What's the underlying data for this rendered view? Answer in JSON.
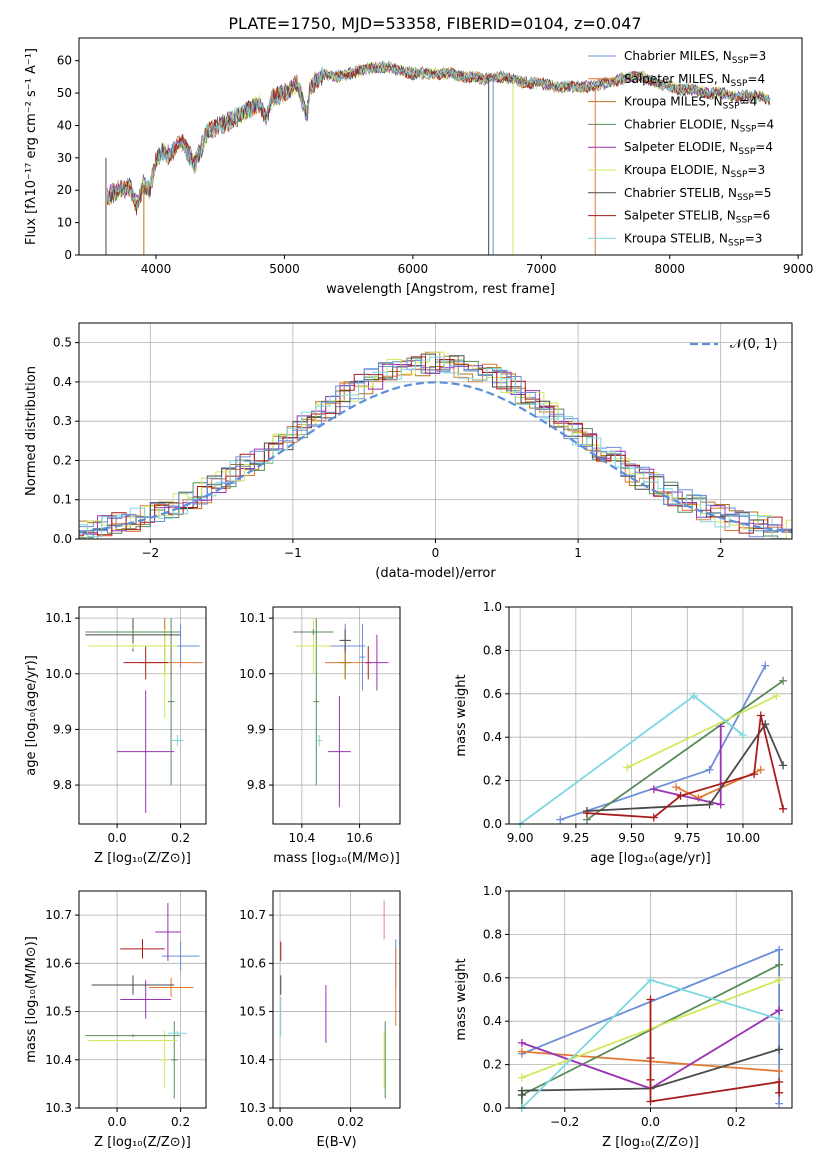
{
  "title": "PLATE=1750, MJD=53358, FIBERID=0104, z=0.047",
  "models": [
    {
      "label": "Chabrier MILES, N",
      "n": "=3",
      "color": "#6c8fd8"
    },
    {
      "label": "Salpeter MILES, N",
      "n": "=4",
      "color": "#e27a35"
    },
    {
      "label": "Kroupa MILES, N",
      "n": "=4",
      "color": "#b5761a"
    },
    {
      "label": "Chabrier ELODIE, N",
      "n": "=4",
      "color": "#5a8a5a"
    },
    {
      "label": "Salpeter ELODIE, N",
      "n": "=4",
      "color": "#9a32b4"
    },
    {
      "label": "Kroupa ELODIE, N",
      "n": "=3",
      "color": "#d2e85c"
    },
    {
      "label": "Chabrier STELIB, N",
      "n": "=5",
      "color": "#4a4a4a"
    },
    {
      "label": "Salpeter STELIB, N",
      "n": "=6",
      "color": "#a81c1c"
    },
    {
      "label": "Kroupa STELIB, N",
      "n": "=3",
      "color": "#7dd8e0"
    }
  ],
  "nssp_sub": "SSP",
  "chart_data": [
    {
      "id": "spectrum",
      "type": "line",
      "xlabel": "wavelength [Angstrom, rest frame]",
      "ylabel": "Flux [fλ10⁻¹⁷ erg cm⁻² s⁻¹ A⁻¹]",
      "xlim": [
        3400,
        9030
      ],
      "ylim": [
        0,
        67
      ],
      "xticks": [
        4000,
        5000,
        6000,
        7000,
        8000,
        9000
      ],
      "yticks": [
        0,
        10,
        20,
        30,
        40,
        50,
        60
      ],
      "continuum": [
        [
          3620,
          18
        ],
        [
          3700,
          20
        ],
        [
          3800,
          21
        ],
        [
          3850,
          15
        ],
        [
          3900,
          22
        ],
        [
          3950,
          20
        ],
        [
          4000,
          29
        ],
        [
          4050,
          32
        ],
        [
          4100,
          31
        ],
        [
          4200,
          35
        ],
        [
          4300,
          28
        ],
        [
          4400,
          38
        ],
        [
          4500,
          40
        ],
        [
          4600,
          42
        ],
        [
          4700,
          44
        ],
        [
          4800,
          47
        ],
        [
          4860,
          42
        ],
        [
          4900,
          48
        ],
        [
          5000,
          50
        ],
        [
          5100,
          53
        ],
        [
          5175,
          43
        ],
        [
          5200,
          52
        ],
        [
          5300,
          56
        ],
        [
          5400,
          55
        ],
        [
          5500,
          56
        ],
        [
          5600,
          57
        ],
        [
          5700,
          58
        ],
        [
          5800,
          58
        ],
        [
          5900,
          57
        ],
        [
          6000,
          56
        ],
        [
          6100,
          56
        ],
        [
          6200,
          56
        ],
        [
          6300,
          56
        ],
        [
          6400,
          55
        ],
        [
          6500,
          55
        ],
        [
          6563,
          54
        ],
        [
          6600,
          55
        ],
        [
          6700,
          55
        ],
        [
          6800,
          54
        ],
        [
          6900,
          53
        ],
        [
          7000,
          53
        ],
        [
          7100,
          52
        ],
        [
          7200,
          52
        ],
        [
          7300,
          52
        ],
        [
          7400,
          52
        ],
        [
          7500,
          53
        ],
        [
          7600,
          54
        ],
        [
          7700,
          55
        ],
        [
          7800,
          55
        ],
        [
          7900,
          53
        ],
        [
          8000,
          52
        ],
        [
          8100,
          51
        ],
        [
          8200,
          51
        ],
        [
          8300,
          50
        ],
        [
          8400,
          50
        ],
        [
          8500,
          49
        ],
        [
          8600,
          49
        ],
        [
          8700,
          49
        ],
        [
          8780,
          48
        ]
      ],
      "drops": [
        {
          "x": 3610,
          "model": 6
        },
        {
          "x": 3905,
          "model": 2
        },
        {
          "x": 6590,
          "model": 6
        },
        {
          "x": 6625,
          "model": 0
        },
        {
          "x": 6780,
          "model": 5
        },
        {
          "x": 7420,
          "model": 1
        }
      ]
    },
    {
      "id": "residuals",
      "type": "histogram",
      "xlabel": "(data-model)/error",
      "ylabel": "Normed distribution",
      "xlim": [
        -2.5,
        2.5
      ],
      "ylim": [
        0,
        0.55
      ],
      "xticks": [
        -2,
        -1,
        0,
        1,
        2
      ],
      "yticks": [
        0.0,
        0.1,
        0.2,
        0.3,
        0.4,
        0.5
      ],
      "reference_label": "𝒩(0, 1)",
      "bin_width": 0.1,
      "reference": "normal(0,1)"
    },
    {
      "id": "Z-age",
      "type": "errorbar",
      "xlabel": "Z [log₁₀(Z/Z⊙)]",
      "ylabel": "age  [log₁₀(age/yr)]",
      "xlim": [
        -0.12,
        0.28
      ],
      "ylim": [
        9.73,
        10.12
      ],
      "xticks": [
        0.0,
        0.2
      ],
      "yticks": [
        9.8,
        9.9,
        10.0,
        10.1
      ],
      "points": [
        {
          "m": 0,
          "x": 0.2,
          "xe": 0.06,
          "y": 10.05,
          "ye": 0.04
        },
        {
          "m": 1,
          "x": 0.17,
          "xe": 0.1,
          "y": 10.02,
          "ye": 0.03
        },
        {
          "m": 2,
          "x": 0.15,
          "xe": 0.02,
          "y": 10.05,
          "ye": 0.05
        },
        {
          "m": 3,
          "x": 0.17,
          "xe": 0.01,
          "y": 9.95,
          "ye": 0.15
        },
        {
          "m": 4,
          "x": 0.09,
          "xe": 0.09,
          "y": 9.86,
          "ye": 0.11
        },
        {
          "m": 5,
          "x": 0.15,
          "xe": 0.01,
          "y": 10.0,
          "ye": 0.08
        },
        {
          "m": 6,
          "x": 0.05,
          "xe": 0.15,
          "y": 10.07,
          "ye": 0.03
        },
        {
          "m": 7,
          "x": 0.09,
          "xe": 0.07,
          "y": 10.02,
          "ye": 0.03
        },
        {
          "m": 8,
          "x": 0.19,
          "xe": 0.02,
          "y": 9.88,
          "ye": 0.01
        },
        {
          "m": 3,
          "x": 0.05,
          "xe": 0.15,
          "y": 10.075,
          "ye": 0.005
        },
        {
          "m": 5,
          "x": 0.05,
          "xe": 0.14,
          "y": 10.05,
          "ye": 0.005
        }
      ]
    },
    {
      "id": "mass-age",
      "type": "errorbar",
      "xlabel": "mass [log₁₀(M/M⊙)]",
      "ylabel": "",
      "xlim": [
        10.3,
        10.74
      ],
      "ylim": [
        9.73,
        10.12
      ],
      "xticks": [
        10.4,
        10.6
      ],
      "yticks": [
        9.8,
        9.9,
        10.0,
        10.1
      ],
      "points": [
        {
          "m": 0,
          "x": 10.55,
          "xe": 0.07,
          "y": 10.05,
          "ye": 0.04
        },
        {
          "m": 1,
          "x": 10.55,
          "xe": 0.07,
          "y": 10.02,
          "ye": 0.03
        },
        {
          "m": 2,
          "x": 10.55,
          "xe": 0.02,
          "y": 10.02,
          "ye": 0.03
        },
        {
          "m": 3,
          "x": 10.45,
          "xe": 0.01,
          "y": 9.95,
          "ye": 0.15
        },
        {
          "m": 4,
          "x": 10.53,
          "xe": 0.04,
          "y": 9.86,
          "ye": 0.1
        },
        {
          "m": 5,
          "x": 10.44,
          "xe": 0.06,
          "y": 10.05,
          "ye": 0.05
        },
        {
          "m": 6,
          "x": 10.55,
          "xe": 0.02,
          "y": 10.06,
          "ye": 0.02
        },
        {
          "m": 7,
          "x": 10.63,
          "xe": 0.01,
          "y": 10.02,
          "ye": 0.03
        },
        {
          "m": 8,
          "x": 10.46,
          "xe": 0.01,
          "y": 9.88,
          "ye": 0.01
        },
        {
          "m": 3,
          "x": 10.44,
          "xe": 0.07,
          "y": 10.075,
          "ye": 0.005
        },
        {
          "m": 0,
          "x": 10.61,
          "xe": 0.01,
          "y": 10.03,
          "ye": 0.06
        },
        {
          "m": 4,
          "x": 10.66,
          "xe": 0.04,
          "y": 10.02,
          "ye": 0.05
        }
      ]
    },
    {
      "id": "age-weight",
      "type": "line",
      "xlabel": "age  [log₁₀(age/yr)]",
      "ylabel": "mass weight",
      "xlim": [
        8.95,
        10.22
      ],
      "ylim": [
        0,
        1
      ],
      "xticks": [
        9.0,
        9.25,
        9.5,
        9.75,
        10.0
      ],
      "yticks": [
        0.0,
        0.2,
        0.4,
        0.6,
        0.8,
        1.0
      ],
      "series": [
        {
          "m": 0,
          "x": [
            9.18,
            9.85,
            10.1
          ],
          "y": [
            0.02,
            0.25,
            0.73
          ]
        },
        {
          "m": 1,
          "x": [
            9.7,
            9.8,
            10.08
          ],
          "y": [
            0.17,
            0.12,
            0.25
          ]
        },
        {
          "m": 3,
          "x": [
            9.3,
            10.18
          ],
          "y": [
            0.02,
            0.66
          ]
        },
        {
          "m": 4,
          "x": [
            9.6,
            9.9,
            9.9
          ],
          "y": [
            0.16,
            0.09,
            0.45
          ]
        },
        {
          "m": 5,
          "x": [
            9.48,
            10.15
          ],
          "y": [
            0.26,
            0.59
          ]
        },
        {
          "m": 6,
          "x": [
            9.3,
            9.85,
            10.1,
            10.18
          ],
          "y": [
            0.06,
            0.09,
            0.46,
            0.27
          ]
        },
        {
          "m": 7,
          "x": [
            9.3,
            9.6,
            9.72,
            10.05,
            10.08,
            10.18
          ],
          "y": [
            0.05,
            0.03,
            0.13,
            0.23,
            0.5,
            0.07
          ]
        },
        {
          "m": 8,
          "x": [
            9.0,
            9.78,
            10.0
          ],
          "y": [
            0.0,
            0.59,
            0.41
          ]
        }
      ]
    },
    {
      "id": "Z-mass",
      "type": "errorbar",
      "xlabel": "Z [log₁₀(Z/Z⊙)]",
      "ylabel": "mass [log₁₀(M/M⊙)]",
      "xlim": [
        -0.12,
        0.28
      ],
      "ylim": [
        10.3,
        10.75
      ],
      "xticks": [
        0.0,
        0.2
      ],
      "yticks": [
        10.3,
        10.4,
        10.5,
        10.6,
        10.7
      ],
      "points": [
        {
          "m": 0,
          "x": 0.2,
          "xe": 0.06,
          "y": 10.615,
          "ye": 0.03
        },
        {
          "m": 1,
          "x": 0.17,
          "xe": 0.07,
          "y": 10.55,
          "ye": 0.02
        },
        {
          "m": 3,
          "x": 0.18,
          "xe": 0.01,
          "y": 10.4,
          "ye": 0.08
        },
        {
          "m": 4,
          "x": 0.09,
          "xe": 0.08,
          "y": 10.525,
          "ye": 0.04
        },
        {
          "m": 5,
          "x": 0.15,
          "xe": 0.01,
          "y": 10.4,
          "ye": 0.06
        },
        {
          "m": 6,
          "x": 0.05,
          "xe": 0.13,
          "y": 10.555,
          "ye": 0.02
        },
        {
          "m": 7,
          "x": 0.08,
          "xe": 0.07,
          "y": 10.63,
          "ye": 0.02
        },
        {
          "m": 8,
          "x": 0.19,
          "xe": 0.03,
          "y": 10.455,
          "ye": 0.005
        },
        {
          "m": 3,
          "x": 0.05,
          "xe": 0.15,
          "y": 10.45,
          "ye": 0.003
        },
        {
          "m": 5,
          "x": 0.05,
          "xe": 0.14,
          "y": 10.44,
          "ye": 0.003
        },
        {
          "m": 4,
          "x": 0.16,
          "xe": 0.04,
          "y": 10.665,
          "ye": 0.06
        }
      ]
    },
    {
      "id": "EBV-mass",
      "type": "errorbar",
      "xlabel": "E(B-V)",
      "ylabel": "",
      "xlim": [
        -0.002,
        0.034
      ],
      "ylim": [
        10.3,
        10.75
      ],
      "xticks": [
        0.0,
        0.02
      ],
      "yticks": [
        10.3,
        10.4,
        10.5,
        10.6,
        10.7
      ],
      "points": [
        {
          "m": 7,
          "x": 0.0002,
          "xe": 0,
          "y": 10.625,
          "ye": 0.02
        },
        {
          "m": 6,
          "x": 0.0002,
          "xe": 0,
          "y": 10.555,
          "ye": 0.02
        },
        {
          "m": 8,
          "x": 0.0002,
          "xe": 0,
          "y": 10.49,
          "ye": 0.04
        },
        {
          "m": 4,
          "x": 0.013,
          "xe": 0,
          "y": 10.495,
          "ye": 0.06
        },
        {
          "m": 9,
          "x": 0.0295,
          "xe": 0,
          "y": 10.69,
          "ye": 0.04
        },
        {
          "m": 3,
          "x": 0.0298,
          "xe": 0,
          "y": 10.4,
          "ye": 0.08
        },
        {
          "m": 5,
          "x": 0.0295,
          "xe": 0,
          "y": 10.4,
          "ye": 0.06
        },
        {
          "m": 0,
          "x": 0.0328,
          "xe": 0,
          "y": 10.6,
          "ye": 0.05
        },
        {
          "m": 1,
          "x": 0.0328,
          "xe": 0,
          "y": 10.55,
          "ye": 0.08
        }
      ]
    },
    {
      "id": "Z-weight",
      "type": "line",
      "xlabel": "Z [log₁₀(Z/Z⊙)]",
      "ylabel": "mass weight",
      "xlim": [
        -0.33,
        0.33
      ],
      "ylim": [
        0,
        1
      ],
      "xticks": [
        -0.2,
        0.0,
        0.2
      ],
      "yticks": [
        0.0,
        0.2,
        0.4,
        0.6,
        0.8,
        1.0
      ],
      "series": [
        {
          "m": 0,
          "x": [
            -0.3,
            0.3,
            0.3
          ],
          "y": [
            0.25,
            0.73,
            0.02
          ]
        },
        {
          "m": 1,
          "x": [
            -0.3,
            0.3
          ],
          "y": [
            0.26,
            0.17
          ]
        },
        {
          "m": 3,
          "x": [
            -0.3,
            -0.3,
            0.3
          ],
          "y": [
            0.0,
            0.06,
            0.66
          ]
        },
        {
          "m": 4,
          "x": [
            -0.3,
            0.0,
            0.3,
            0.3
          ],
          "y": [
            0.3,
            0.09,
            0.45,
            0.45
          ]
        },
        {
          "m": 5,
          "x": [
            -0.3,
            0.3
          ],
          "y": [
            0.14,
            0.59
          ]
        },
        {
          "m": 6,
          "x": [
            -0.3,
            -0.3,
            0.0,
            0.3
          ],
          "y": [
            0.06,
            0.08,
            0.09,
            0.27
          ]
        },
        {
          "m": 7,
          "x": [
            0.0,
            0.0,
            0.0,
            0.0,
            0.3,
            0.3
          ],
          "y": [
            0.5,
            0.23,
            0.13,
            0.03,
            0.12,
            0.07
          ]
        },
        {
          "m": 8,
          "x": [
            -0.3,
            0.0,
            0.3
          ],
          "y": [
            0.0,
            0.59,
            0.41
          ]
        }
      ]
    }
  ]
}
